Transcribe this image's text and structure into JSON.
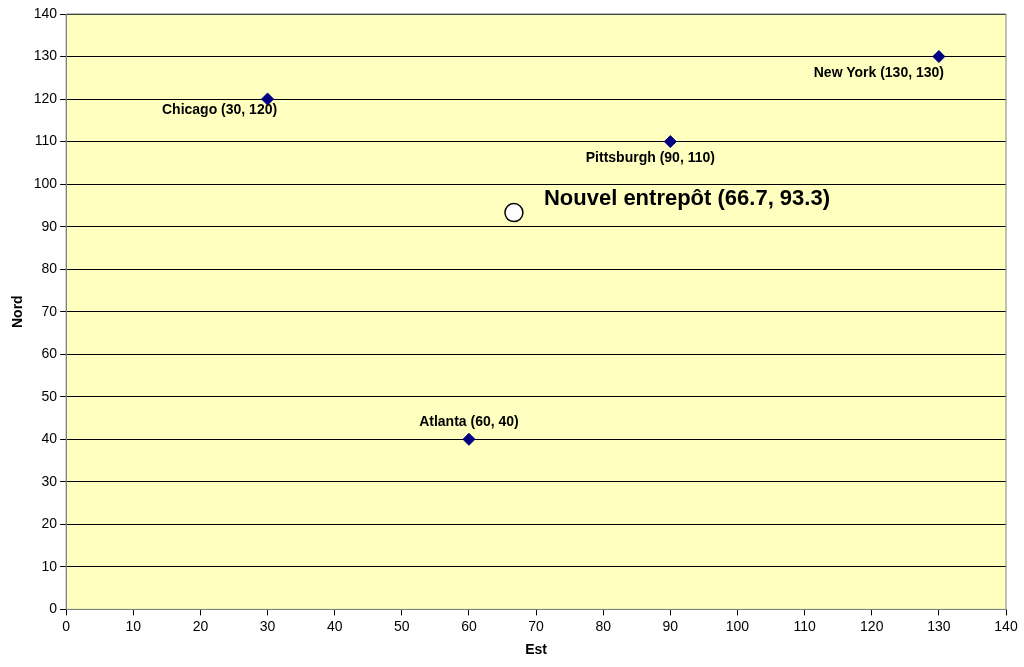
{
  "chart_data": {
    "type": "scatter",
    "xlabel": "Est",
    "ylabel": "Nord",
    "series": [
      {
        "x": [
          30,
          60,
          90,
          130
        ],
        "values": [
          120,
          40,
          110,
          130
        ],
        "color": "#000080",
        "marker": "diamond"
      },
      {
        "x": [
          66.7
        ],
        "values": [
          93.3
        ],
        "color": "#ffffff",
        "marker": "circle"
      }
    ],
    "xlim": [
      0,
      140
    ],
    "xticks": [
      0,
      10,
      20,
      30,
      40,
      50,
      60,
      70,
      80,
      90,
      100,
      110,
      120,
      130,
      140
    ],
    "ylim": [
      0,
      140
    ],
    "yticks": [
      0,
      10,
      20,
      30,
      40,
      50,
      60,
      70,
      80,
      90,
      100,
      110,
      120,
      130,
      140
    ],
    "grid": "y",
    "legend": false,
    "annotations": [
      {
        "text": "Chicago (30, 120)",
        "x": 30,
        "y": 120
      },
      {
        "text": "Atlanta (60, 40)",
        "x": 60,
        "y": 40
      },
      {
        "text": "Pittsburgh (90, 110)",
        "x": 90,
        "y": 110
      },
      {
        "text": "New York (130, 130)",
        "x": 130,
        "y": 130
      },
      {
        "text": "Nouvel entrepôt (66.7, 93.3)",
        "x": 66.7,
        "y": 93.3
      }
    ]
  }
}
